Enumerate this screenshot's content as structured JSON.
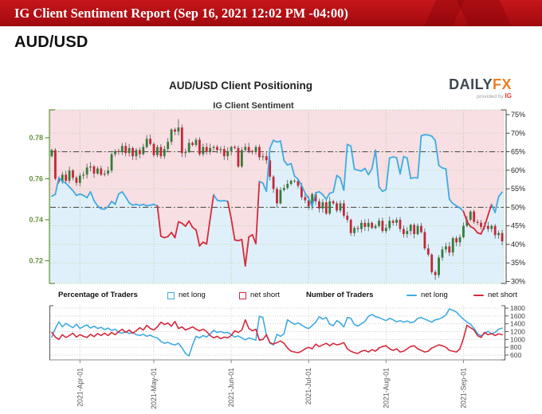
{
  "header": {
    "title": "IG Client Sentiment Report (Sep 16, 2021 12:02 PM -04:00)"
  },
  "page": {
    "symbol": "AUD/USD"
  },
  "figure": {
    "title": "AUD/USD Client Positioning",
    "subtitle": "IG Client Sentiment",
    "logo": {
      "part1": "DAILY",
      "part2": "FX",
      "tagline": "provided by",
      "brand": "IG"
    }
  },
  "legend": {
    "group1": "Percentage of Traders",
    "net_long": "net long",
    "net_short": "net short",
    "group2": "Number of Traders",
    "net_long2": "net long",
    "net_short2": "net short"
  },
  "colors": {
    "blue_line": "#41aae1",
    "red_line": "#d42a3d",
    "candle_up": "#367c38",
    "candle_down": "#c4273a",
    "wick": "#555555",
    "area_above": "#f8dfe3",
    "area_below": "#e0f0fa",
    "grid_green": "#aecf96",
    "axis_green": "#66913e",
    "grid_gray": "#cccccc",
    "refline": "#555555",
    "header_red": "#b30f14"
  },
  "chart_data": [
    {
      "type": "candlestick+line",
      "title": "IG Client Sentiment",
      "x_ticks": {
        "labels": [
          "2021-Apr-01",
          "2021-May-01",
          "2021-Jun-01",
          "2021-Jul-01",
          "2021-Aug-01",
          "2021-Sep-01"
        ],
        "day_index": [
          8,
          29,
          51,
          73,
          95,
          117
        ]
      },
      "price_axis": {
        "side": "left",
        "labels": [
          "0.78",
          "0.76",
          "0.74",
          "0.72"
        ],
        "values": [
          0.78,
          0.76,
          0.74,
          0.72
        ],
        "range": [
          0.7075,
          0.7935
        ]
      },
      "pct_axis": {
        "side": "right",
        "labels": [
          "75%",
          "70%",
          "65%",
          "60%",
          "55%",
          "50%",
          "45%",
          "40%",
          "35%",
          "30%"
        ],
        "values": [
          75,
          70,
          65,
          60,
          55,
          50,
          45,
          40,
          35,
          30
        ],
        "range": [
          29.5,
          76.3
        ]
      },
      "reference_lines_pct": [
        65,
        50
      ],
      "candles": {
        "note": "AUD/USD daily price, late Mar to Sep 16 2021; open equals previous close, wicks approx +/-0.0015",
        "first_open": 0.771,
        "closes": [
          0.774,
          0.76,
          0.7585,
          0.762,
          0.759,
          0.764,
          0.7605,
          0.758,
          0.7615,
          0.762,
          0.7655,
          0.766,
          0.7625,
          0.765,
          0.762,
          0.7625,
          0.764,
          0.772,
          0.7735,
          0.773,
          0.776,
          0.7725,
          0.775,
          0.771,
          0.774,
          0.772,
          0.7755,
          0.7795,
          0.777,
          0.7715,
          0.7755,
          0.771,
          0.7745,
          0.778,
          0.784,
          0.783,
          0.785,
          0.7725,
          0.773,
          0.7775,
          0.7765,
          0.779,
          0.772,
          0.7755,
          0.773,
          0.775,
          0.7755,
          0.774,
          0.7745,
          0.771,
          0.7735,
          0.7755,
          0.775,
          0.766,
          0.774,
          0.7755,
          0.7735,
          0.773,
          0.7755,
          0.7705,
          0.771,
          0.769,
          0.761,
          0.755,
          0.748,
          0.7545,
          0.7555,
          0.7575,
          0.759,
          0.759,
          0.7565,
          0.751,
          0.7495,
          0.7465,
          0.7525,
          0.749,
          0.7455,
          0.7485,
          0.743,
          0.749,
          0.748,
          0.7445,
          0.748,
          0.742,
          0.74,
          0.7335,
          0.736,
          0.7355,
          0.7385,
          0.7365,
          0.7385,
          0.736,
          0.737,
          0.7395,
          0.7345,
          0.736,
          0.7395,
          0.7385,
          0.74,
          0.7355,
          0.733,
          0.7345,
          0.7375,
          0.733,
          0.737,
          0.734,
          0.726,
          0.723,
          0.7145,
          0.713,
          0.7215,
          0.7255,
          0.727,
          0.724,
          0.731,
          0.729,
          0.7315,
          0.737,
          0.74,
          0.744,
          0.739,
          0.7385,
          0.7365,
          0.737,
          0.7355,
          0.737,
          0.7325,
          0.7335,
          0.7295
        ],
        "special_high": {
          "36": 0.7891
        },
        "special_low": {
          "109": 0.7106
        }
      },
      "sentiment_pct": {
        "name": "net long percentage of traders",
        "red_below": 48,
        "values": [
          53,
          53.5,
          58,
          57,
          56.5,
          55.5,
          54.5,
          53.2,
          53.6,
          53.2,
          52.6,
          54.2,
          51.8,
          50.4,
          49.6,
          49.5,
          50.2,
          51.6,
          50.8,
          53.6,
          54.2,
          52.8,
          51.2,
          50.6,
          50.8,
          50.5,
          50.8,
          50.4,
          50.6,
          50.8,
          50.4,
          42.2,
          41.8,
          42.1,
          43.2,
          41.8,
          46.1,
          45.7,
          44.9,
          46.3,
          44.6,
          43.9,
          39.6,
          40.6,
          40.1,
          46.8,
          53.4,
          51.9,
          51.7,
          51.8,
          51.6,
          46.9,
          41.2,
          41.0,
          41.3,
          34.2,
          42.0,
          42.6,
          40.2,
          57.0,
          56.5,
          54.3,
          66.0,
          68.1,
          67.6,
          67.9,
          62.6,
          61.4,
          61.8,
          58.4,
          57.6,
          55.9,
          53.8,
          52.4,
          50.3,
          53.9,
          54.2,
          53.4,
          52.2,
          53.8,
          54.1,
          58.6,
          57.9,
          54.6,
          67.0,
          66.5,
          60.3,
          60.0,
          59.8,
          60.5,
          58.8,
          60.4,
          65.4,
          55.5,
          54.3,
          54.8,
          63.3,
          63.6,
          63.4,
          59.0,
          63.7,
          63.3,
          57.8,
          58.0,
          57.9,
          69.3,
          69.6,
          69.5,
          69.2,
          68.0,
          61.3,
          60.6,
          60.4,
          52.2,
          51.0,
          50.4,
          49.8,
          48.9,
          46.2,
          44.8,
          44.3,
          43.1,
          42.8,
          44.9,
          47.9,
          50.8,
          48.6,
          52.9,
          54.1
        ]
      }
    },
    {
      "type": "line",
      "count_axis": {
        "side": "right",
        "labels": [
          "1800",
          "1600",
          "1400",
          "1200",
          "1000",
          "800",
          "600"
        ],
        "values": [
          1800,
          1600,
          1400,
          1200,
          1000,
          800,
          600
        ],
        "range": [
          480,
          1830
        ]
      },
      "series": [
        {
          "name": "net long",
          "color": "#41aae1",
          "values": [
            1060,
            1280,
            1450,
            1320,
            1410,
            1350,
            1300,
            1390,
            1280,
            1330,
            1370,
            1290,
            1340,
            1280,
            1310,
            1250,
            1290,
            1230,
            1260,
            1180,
            1160,
            1200,
            1150,
            1180,
            1120,
            1100,
            1130,
            1080,
            1110,
            1060,
            1040,
            950,
            900,
            930,
            880,
            860,
            900,
            790,
            640,
            580,
            860,
            1080,
            1040,
            1100,
            1060,
            1140,
            1230,
            1180,
            1200,
            1170,
            1180,
            1120,
            1060,
            1090,
            1040,
            990,
            1040,
            1010,
            980,
            1590,
            1560,
            1100,
            900,
            860,
            1130,
            1080,
            1140,
            1500,
            1440,
            1390,
            1420,
            1370,
            1310,
            1280,
            1350,
            1440,
            1580,
            1520,
            1560,
            1390,
            1350,
            1480,
            1420,
            1320,
            1560,
            1540,
            1380,
            1340,
            1400,
            1460,
            1590,
            1640,
            1580,
            1560,
            1520,
            1480,
            1540,
            1500,
            1450,
            1480,
            1440,
            1470,
            1430,
            1450,
            1540,
            1560,
            1520,
            1480,
            1440,
            1500,
            1520,
            1560,
            1620,
            1780,
            1740,
            1700,
            1600,
            1520,
            1440,
            1390,
            1280,
            1150,
            1090,
            1150,
            1210,
            1140,
            1180,
            1260,
            1290
          ]
        },
        {
          "name": "net short",
          "color": "#d42a3d",
          "values": [
            1180,
            1060,
            1000,
            1120,
            1050,
            1100,
            1160,
            1060,
            1120,
            1080,
            1050,
            1130,
            1070,
            1150,
            1100,
            1160,
            1100,
            1180,
            1120,
            1200,
            1260,
            1180,
            1240,
            1160,
            1220,
            1300,
            1240,
            1360,
            1280,
            1240,
            1320,
            1440,
            1380,
            1420,
            1340,
            1460,
            1280,
            1320,
            1240,
            1280,
            1320,
            1260,
            1220,
            1260,
            1200,
            1100,
            1040,
            1080,
            1020,
            1060,
            1040,
            1100,
            1220,
            1180,
            1240,
            1500,
            1280,
            1220,
            1260,
            980,
            1000,
            1120,
            920,
            880,
            920,
            960,
            900,
            780,
            700,
            680,
            660,
            700,
            760,
            800,
            760,
            880,
            820,
            860,
            900,
            840,
            900,
            860,
            880,
            920,
            760,
            700,
            660,
            640,
            700,
            720,
            680,
            740,
            700,
            780,
            820,
            840,
            760,
            720,
            760,
            680,
            700,
            760,
            820,
            840,
            760,
            720,
            680,
            700,
            780,
            820,
            860,
            840,
            800,
            720,
            700,
            680,
            760,
            1020,
            1360,
            1300,
            1240,
            1100,
            1050,
            1180,
            1120,
            1150,
            1100,
            1140,
            1120
          ]
        }
      ]
    }
  ]
}
